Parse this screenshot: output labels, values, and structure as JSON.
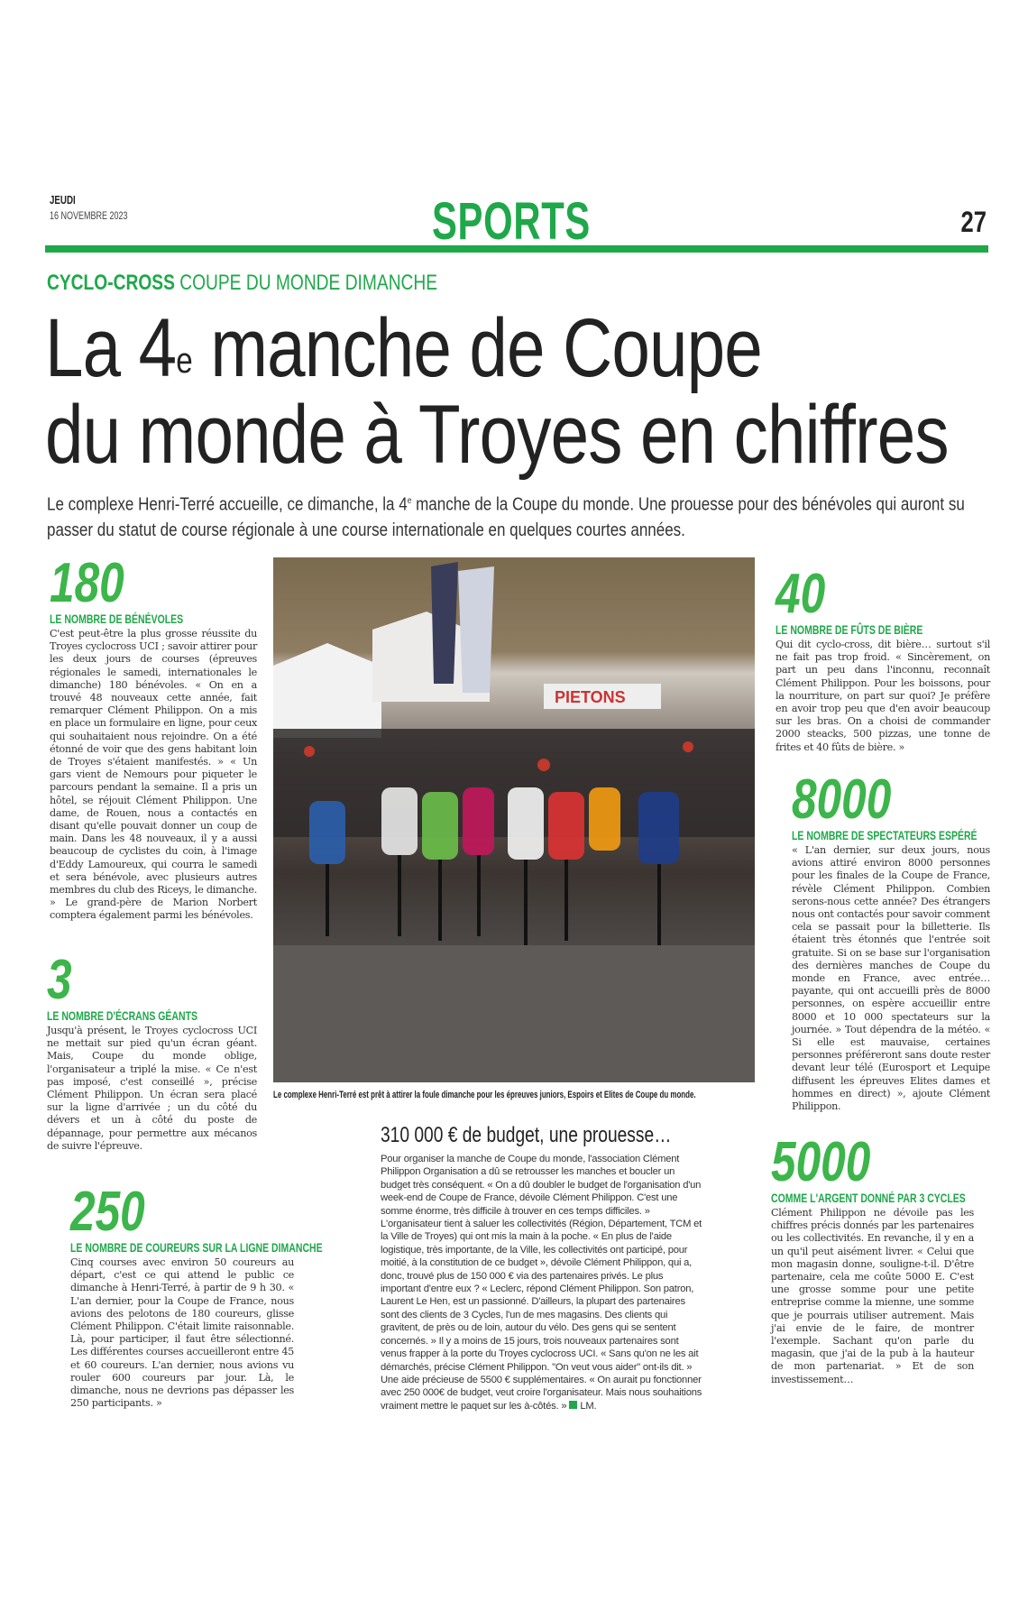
{
  "masthead": {
    "day": "JEUDI",
    "date": "16 NOVEMBRE 2023",
    "section": "SPORTS",
    "page_number": "27",
    "accent_color": "#1fa84a"
  },
  "kicker": {
    "category": "CYCLO-CROSS",
    "topic": "COUPE DU MONDE DIMANCHE"
  },
  "headline": {
    "line1_a": "La 4",
    "line1_sup": "e",
    "line1_b": " manche de Coupe",
    "line2": "du monde à Troyes en chiffres"
  },
  "deck": {
    "a": "Le complexe Henri-Terré accueille, ce dimanche, la 4",
    "sup": "e",
    "b": " manche de la Coupe du monde. Une prouesse pour des bénévoles qui auront su passer du statut de course régionale à une course internationale en quelques courtes années."
  },
  "photo": {
    "caption": "Le complexe Henri-Terré est prêt à attirer la foule dimanche pour les épreuves juniors, Espoirs et Elites de Coupe du monde.",
    "banner_text": "PIETONS"
  },
  "figures": [
    {
      "number": "180",
      "label": "LE NOMBRE DE BÉNÉVOLES",
      "text": "C'est peut-être la plus grosse réussite du Troyes cyclocross UCI ; savoir attirer pour les deux jours de courses (épreuves régionales le samedi, internationales le dimanche) 180 bénévoles. « On en a trouvé 48 nouveaux cette année, fait remarquer Clément Philippon. On a mis en place un formulaire en ligne, pour ceux qui souhaitaient nous rejoindre. On a été étonné de voir que des gens habitant loin de Troyes s'étaient manifestés. » « Un gars vient de Nemours pour piqueter le parcours pendant la semaine. Il a pris un hôtel, se réjouit Clément Philippon. Une dame, de Rouen, nous a contactés en disant qu'elle pouvait donner un coup de main. Dans les 48 nouveaux, il y a aussi beaucoup de cyclistes du coin, à l'image d'Eddy Lamoureux, qui courra le samedi et sera bénévole, avec plusieurs autres membres du club des Riceys, le dimanche. » Le grand-père de Marion Norbert comptera également parmi les bénévoles."
    },
    {
      "number": "3",
      "label": "LE NOMBRE D'ÉCRANS GÉANTS",
      "text": "Jusqu'à présent, le Troyes cyclocross UCI ne mettait sur pied qu'un écran géant. Mais, Coupe du monde oblige, l'organisateur a triplé la mise. « Ce n'est pas imposé, c'est conseillé », précise Clément Philippon. Un écran sera placé sur la ligne d'arrivée ; un du côté du dévers et un à côté du poste de dépannage, pour permettre aux mécanos de suivre l'épreuve."
    },
    {
      "number": "250",
      "label": "LE NOMBRE DE COUREURS SUR LA LIGNE DIMANCHE",
      "text": "Cinq courses avec environ 50 coureurs au départ, c'est ce qui attend le public ce dimanche à Henri-Terré, à partir de 9 h 30. « L'an dernier, pour la Coupe de France, nous avions des pelotons de 180 coureurs, glisse Clément Philippon. C'était limite raisonnable. Là, pour participer, il faut être sélectionné. Les différentes courses accueilleront entre 45 et 60 coureurs. L'an dernier, nous avions vu rouler 600 coureurs par jour. Là, le dimanche, nous ne devrions pas dépasser les 250 participants. »"
    },
    {
      "number": "40",
      "label": "LE NOMBRE DE FÛTS DE BIÈRE",
      "text": "Qui dit cyclo-cross, dit bière… surtout s'il ne fait pas trop froid. « Sincèrement, on part un peu dans l'inconnu, reconnaît Clément Philippon. Pour les boissons, pour la nourriture, on part sur quoi? Je préfère en avoir trop peu que d'en avoir beaucoup sur les bras. On a choisi de commander 2000 steacks, 500 pizzas, une tonne de frites et 40 fûts de bière. »"
    },
    {
      "number": "8000",
      "label": "LE NOMBRE DE SPECTATEURS ESPÉRÉ",
      "text": "« L'an dernier, sur deux jours, nous avions attiré environ 8000 personnes pour les finales de la Coupe de France, révèle Clément Philippon. Combien serons-nous cette année? Des étrangers nous ont contactés pour savoir comment cela se passait pour la billetterie. Ils étaient très étonnés que l'entrée soit gratuite. Si on se base sur l'organisation des dernières manches de Coupe du monde en France, avec entrée… payante, qui ont accueilli près de 8000 personnes, on espère accueillir entre 8000 et 10 000 spectateurs sur la journée. » Tout dépendra de la météo. « Si elle est mauvaise, certaines personnes préféreront sans doute rester devant leur télé (Eurosport et Lequipe diffusent les épreuves Elites dames et hommes en direct) », ajoute Clément Philippon."
    },
    {
      "number": "5000",
      "label": "COMME L'ARGENT DONNÉ PAR 3 CYCLES",
      "text": "Clément Philippon ne dévoile pas les chiffres précis donnés par les partenaires ou les collectivités. En revanche, il y en a un qu'il peut aisément livrer. « Celui que mon magasin donne, souligne-t-il. D'être partenaire, cela me coûte 5000 E. C'est une grosse somme pour une petite entreprise comme la mienne, une somme que je pourrais utiliser autrement. Mais j'ai envie de le faire, de montrer l'exemple. Sachant qu'on parle du magasin, que j'ai de la pub à la hauteur de mon partenariat. » Et de son investissement…"
    }
  ],
  "budget": {
    "title": "310 000  € de budget, une prouesse…",
    "text": "Pour organiser la manche de Coupe du monde, l'association Clément Philippon Organisation a dû se retrousser les manches et boucler un budget très conséquent. « On a dû doubler le budget de l'organisation d'un week-end de Coupe de France, dévoile Clément Philippon. C'est une somme énorme, très difficile à trouver en ces temps difficiles. » L'organisateur tient à saluer les collectivités (Région, Département, TCM et la Ville de Troyes) qui ont mis la main à la poche. « En plus de l'aide logistique, très importante, de la Ville, les collectivités ont participé, pour moitié, à la constitution de ce budget », dévoile Clément Philippon, qui a, donc, trouvé plus de 150 000 € via des partenaires privés. Le plus important d'entre eux ? « Leclerc, répond Clément Philippon. Son patron, Laurent Le Hen, est un passionné. D'ailleurs, la plupart des partenaires sont des clients de 3 Cycles, l'un de mes magasins. Des clients qui gravitent, de près ou de loin, autour du vélo. Des gens qui se sentent concernés. » Il y a moins de 15 jours, trois nouveaux partenaires sont venus frapper à la porte du Troyes cyclocross UCI. « Sans qu'on ne les ait démarchés, précise Clément Philippon. \"On veut vous aider\" ont-ils dit. » Une aide précieuse de 5500 € supplémentaires. « On aurait pu fonctionner avec 250 000€ de budget, veut croire l'organisateur. Mais nous souhaitions vraiment mettre le paquet sur les à-côtés. »",
    "signature": "LM."
  }
}
